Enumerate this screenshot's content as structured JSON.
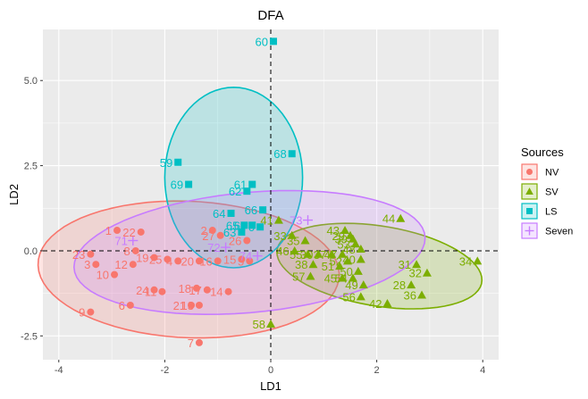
{
  "chart_data": {
    "type": "scatter",
    "title": "DFA",
    "xlabel": "LD1",
    "ylabel": "LD2",
    "xlim": [
      -4.3,
      4.3
    ],
    "ylim": [
      -3.2,
      6.5
    ],
    "xticks": [
      -4,
      -2,
      0,
      2,
      4
    ],
    "yticks": [
      -2.5,
      0.0,
      2.5,
      5.0
    ],
    "ytick_labels": [
      "-2.5",
      "0.0",
      "2.5",
      "5.0"
    ],
    "grid": true,
    "reference_lines": {
      "x": 0,
      "y": 0
    },
    "legend": {
      "title": "Sources",
      "position": "right"
    },
    "series": [
      {
        "name": "NV",
        "color": "#F8766D",
        "shape": "circle",
        "ellipse": {
          "cx": -1.55,
          "cy": -0.55,
          "rx": 2.85,
          "ry": 2.0,
          "angle": -6
        },
        "points": [
          {
            "label": "1",
            "x": -2.9,
            "y": 0.6
          },
          {
            "label": "2",
            "x": -1.1,
            "y": 0.6
          },
          {
            "label": "3",
            "x": -3.3,
            "y": -0.4
          },
          {
            "label": "4",
            "x": -1.75,
            "y": -0.3
          },
          {
            "label": "5",
            "x": -0.4,
            "y": -0.3
          },
          {
            "label": "6",
            "x": -2.65,
            "y": -1.6
          },
          {
            "label": "7",
            "x": -1.35,
            "y": -2.7
          },
          {
            "label": "8",
            "x": -2.55,
            "y": 0.0
          },
          {
            "label": "9",
            "x": -3.4,
            "y": -1.8
          },
          {
            "label": "10",
            "x": -2.95,
            "y": -0.7
          },
          {
            "label": "11",
            "x": -2.05,
            "y": -1.2
          },
          {
            "label": "12",
            "x": -2.6,
            "y": -0.4
          },
          {
            "label": "13",
            "x": -1.35,
            "y": -1.6
          },
          {
            "label": "14",
            "x": -0.8,
            "y": -1.2
          },
          {
            "label": "15",
            "x": -0.55,
            "y": -0.25
          },
          {
            "label": "16",
            "x": -1.0,
            "y": -0.3
          },
          {
            "label": "17",
            "x": -1.2,
            "y": -1.15
          },
          {
            "label": "18",
            "x": -1.4,
            "y": -1.1
          },
          {
            "label": "19",
            "x": -2.2,
            "y": -0.2
          },
          {
            "label": "20",
            "x": -1.35,
            "y": -0.3
          },
          {
            "label": "21",
            "x": -1.5,
            "y": -1.6
          },
          {
            "label": "22",
            "x": -2.45,
            "y": 0.55
          },
          {
            "label": "23",
            "x": -3.4,
            "y": -0.1
          },
          {
            "label": "24",
            "x": -2.2,
            "y": -1.15
          },
          {
            "label": "25",
            "x": -1.95,
            "y": -0.25
          },
          {
            "label": "26",
            "x": -0.45,
            "y": 0.3
          },
          {
            "label": "27",
            "x": -0.95,
            "y": 0.45
          }
        ]
      },
      {
        "name": "SV",
        "color": "#7CAE00",
        "shape": "triangle",
        "ellipse": {
          "cx": 2.05,
          "cy": -0.45,
          "rx": 2.0,
          "ry": 1.15,
          "angle": -18
        },
        "points": [
          {
            "label": "28",
            "x": 2.65,
            "y": -1.0
          },
          {
            "label": "29",
            "x": 1.5,
            "y": 0.45
          },
          {
            "label": "30",
            "x": 0.9,
            "y": -0.1
          },
          {
            "label": "31",
            "x": 2.75,
            "y": -0.4
          },
          {
            "label": "32",
            "x": 2.95,
            "y": -0.65
          },
          {
            "label": "33",
            "x": 0.4,
            "y": 0.45
          },
          {
            "label": "34",
            "x": 3.9,
            "y": -0.3
          },
          {
            "label": "35",
            "x": 0.65,
            "y": 0.3
          },
          {
            "label": "36",
            "x": 2.85,
            "y": -1.3
          },
          {
            "label": "37",
            "x": 1.15,
            "y": -0.1
          },
          {
            "label": "38",
            "x": 0.8,
            "y": -0.4
          },
          {
            "label": "39",
            "x": 1.55,
            "y": 0.35
          },
          {
            "label": "40",
            "x": 1.7,
            "y": -0.25
          },
          {
            "label": "41",
            "x": 0.15,
            "y": 0.9
          },
          {
            "label": "42",
            "x": 2.2,
            "y": -1.55
          },
          {
            "label": "43",
            "x": 1.4,
            "y": 0.6
          },
          {
            "label": "44",
            "x": 2.45,
            "y": 0.95
          },
          {
            "label": "45",
            "x": 1.35,
            "y": -0.8
          },
          {
            "label": "46",
            "x": 0.45,
            "y": 0.0
          },
          {
            "label": "47",
            "x": 1.35,
            "y": -0.1
          },
          {
            "label": "48",
            "x": 1.7,
            "y": 0.05
          },
          {
            "label": "49",
            "x": 1.75,
            "y": -1.0
          },
          {
            "label": "50",
            "x": 1.65,
            "y": -0.6
          },
          {
            "label": "51",
            "x": 1.3,
            "y": -0.45
          },
          {
            "label": "52",
            "x": 1.45,
            "y": -0.3
          },
          {
            "label": "53",
            "x": 1.6,
            "y": 0.2
          },
          {
            "label": "54",
            "x": 1.55,
            "y": -0.8
          },
          {
            "label": "55",
            "x": 0.7,
            "y": -0.1
          },
          {
            "label": "56",
            "x": 1.7,
            "y": -1.35
          },
          {
            "label": "57",
            "x": 0.75,
            "y": -0.75
          },
          {
            "label": "58",
            "x": 0.0,
            "y": -2.15
          }
        ]
      },
      {
        "name": "LS",
        "color": "#00BFC4",
        "shape": "square",
        "ellipse": {
          "cx": -0.7,
          "cy": 2.15,
          "rx": 1.3,
          "ry": 2.65,
          "angle": 0
        },
        "points": [
          {
            "label": "59",
            "x": -1.75,
            "y": 2.6
          },
          {
            "label": "60",
            "x": 0.05,
            "y": 6.15
          },
          {
            "label": "61",
            "x": -0.35,
            "y": 1.95
          },
          {
            "label": "62",
            "x": -0.45,
            "y": 1.75
          },
          {
            "label": "63",
            "x": -0.55,
            "y": 0.55
          },
          {
            "label": "64",
            "x": -0.75,
            "y": 1.1
          },
          {
            "label": "65",
            "x": -0.5,
            "y": 0.75
          },
          {
            "label": "66",
            "x": -0.15,
            "y": 1.2
          },
          {
            "label": "67",
            "x": -0.35,
            "y": 0.75
          },
          {
            "label": "68",
            "x": 0.4,
            "y": 2.85
          },
          {
            "label": "69",
            "x": -1.55,
            "y": 1.95
          },
          {
            "label": "70",
            "x": -0.2,
            "y": 0.7
          }
        ]
      },
      {
        "name": "Seven",
        "color": "#C77CFF",
        "shape": "plus",
        "ellipse": {
          "cx": -0.4,
          "cy": -0.05,
          "rx": 3.35,
          "ry": 1.75,
          "angle": 10
        },
        "points": [
          {
            "label": "71",
            "x": -2.6,
            "y": 0.3
          },
          {
            "label": "72",
            "x": -0.85,
            "y": 0.1
          },
          {
            "label": "73",
            "x": 0.7,
            "y": 0.9
          },
          {
            "label": "74",
            "x": -0.25,
            "y": -0.15
          }
        ]
      }
    ]
  }
}
